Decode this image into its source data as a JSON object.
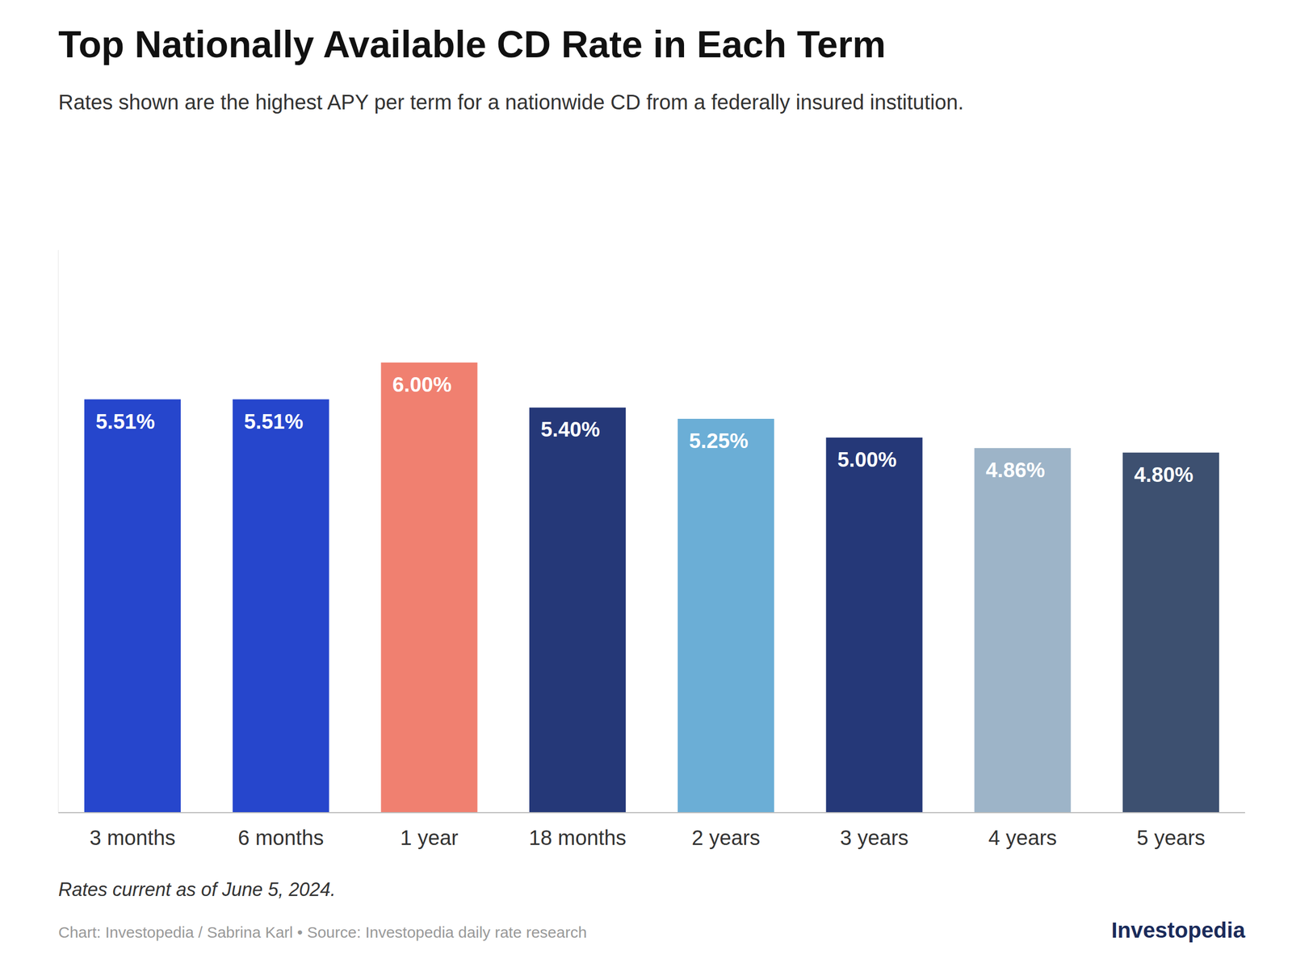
{
  "chart_data": {
    "type": "bar",
    "title": "Top Nationally Available CD Rate in Each Term",
    "subtitle": "Rates shown are the highest APY per term for a nationwide CD from a federally insured institution.",
    "categories": [
      "3 months",
      "6 months",
      "1 year",
      "18 months",
      "2 years",
      "3 years",
      "4 years",
      "5 years"
    ],
    "values": [
      5.51,
      5.51,
      6.0,
      5.4,
      5.25,
      5.0,
      4.86,
      4.8
    ],
    "value_labels": [
      "5.51%",
      "5.51%",
      "6.00%",
      "5.40%",
      "5.25%",
      "5.00%",
      "4.86%",
      "4.80%"
    ],
    "colors": [
      "#2646CC",
      "#2646CC",
      "#F08070",
      "#253878",
      "#6BAED6",
      "#253878",
      "#9DB4C8",
      "#3D5070"
    ],
    "ylim": [
      0,
      7.5
    ],
    "data_labels": true,
    "tick_labels": "x",
    "grid": false,
    "annotations": [
      "Rates current as of June 5, 2024.",
      "Chart: Investopedia / Sabrina Karl • Source: Investopedia daily rate research",
      "Investopedia"
    ]
  }
}
